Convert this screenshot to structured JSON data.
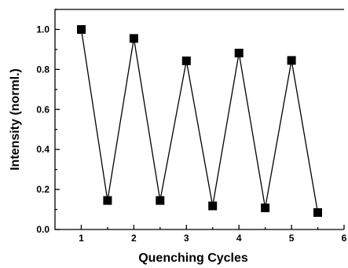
{
  "chart_data": {
    "type": "line",
    "title": "",
    "xlabel": "Quenching Cycles",
    "ylabel": "Intensity (norml.)",
    "xlim": [
      0.5,
      6.0
    ],
    "ylim": [
      0.0,
      1.1
    ],
    "x_ticks": [
      "1",
      "2",
      "3",
      "4",
      "5",
      "6"
    ],
    "y_ticks": [
      "0.0",
      "0.2",
      "0.4",
      "0.6",
      "0.8",
      "1.0"
    ],
    "grid": false,
    "marker": "square",
    "series": [
      {
        "x": [
          1,
          1.5,
          2,
          2.5,
          3,
          3.5,
          4,
          4.5,
          5,
          5.5
        ],
        "y": [
          1.0,
          0.145,
          0.955,
          0.145,
          0.843,
          0.118,
          0.882,
          0.108,
          0.845,
          0.085
        ]
      }
    ]
  }
}
